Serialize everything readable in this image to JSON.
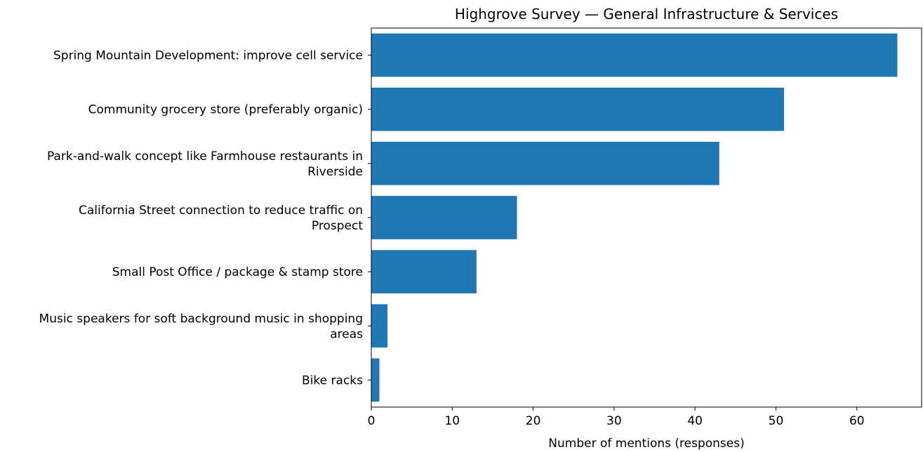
{
  "chart_data": {
    "type": "bar",
    "orientation": "horizontal",
    "title": "Highgrove Survey — General Infrastructure & Services",
    "xlabel": "Number of mentions (responses)",
    "ylabel": "",
    "xlim": [
      0,
      68
    ],
    "xticks": [
      0,
      10,
      20,
      30,
      40,
      50,
      60
    ],
    "grid": false,
    "legend": "none",
    "bar_color": "#1f77b4",
    "categories": [
      [
        "Spring Mountain Development: improve cell service"
      ],
      [
        "Community grocery store (preferably organic)"
      ],
      [
        "Park-and-walk concept like Farmhouse restaurants in",
        "Riverside"
      ],
      [
        "California Street connection to reduce traffic on",
        "Prospect"
      ],
      [
        "Small Post Office / package & stamp store"
      ],
      [
        "Music speakers for soft background music in shopping",
        "areas"
      ],
      [
        "Bike racks"
      ]
    ],
    "values": [
      65,
      51,
      43,
      18,
      13,
      2,
      1
    ]
  }
}
